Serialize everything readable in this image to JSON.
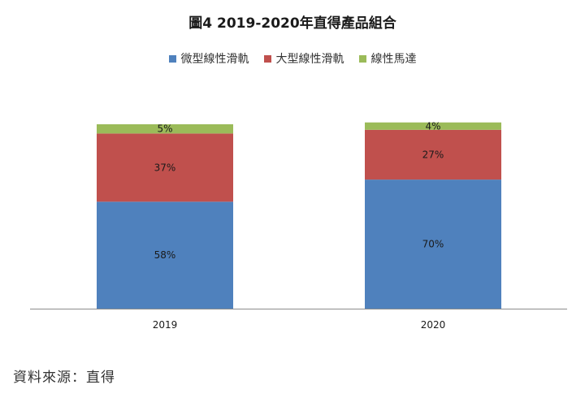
{
  "chart_data": {
    "type": "bar",
    "stacked": true,
    "title": "圖4 2019-2020年直得產品組合",
    "categories": [
      "2019",
      "2020"
    ],
    "series": [
      {
        "name": "微型線性滑軌",
        "color": "#4F81BD",
        "values": [
          58,
          70
        ],
        "labels": [
          "58%",
          "70%"
        ]
      },
      {
        "name": "大型線性滑軌",
        "color": "#C0504D",
        "values": [
          37,
          27
        ],
        "labels": [
          "37%",
          "27%"
        ]
      },
      {
        "name": "線性馬達",
        "color": "#9BBB59",
        "values": [
          5,
          4
        ],
        "labels": [
          "5%",
          "4%"
        ]
      }
    ],
    "xlabel": "",
    "ylabel": "",
    "ylim": [
      0,
      100
    ],
    "grid": false,
    "legend_position": "top"
  },
  "source": "資料來源：直得"
}
